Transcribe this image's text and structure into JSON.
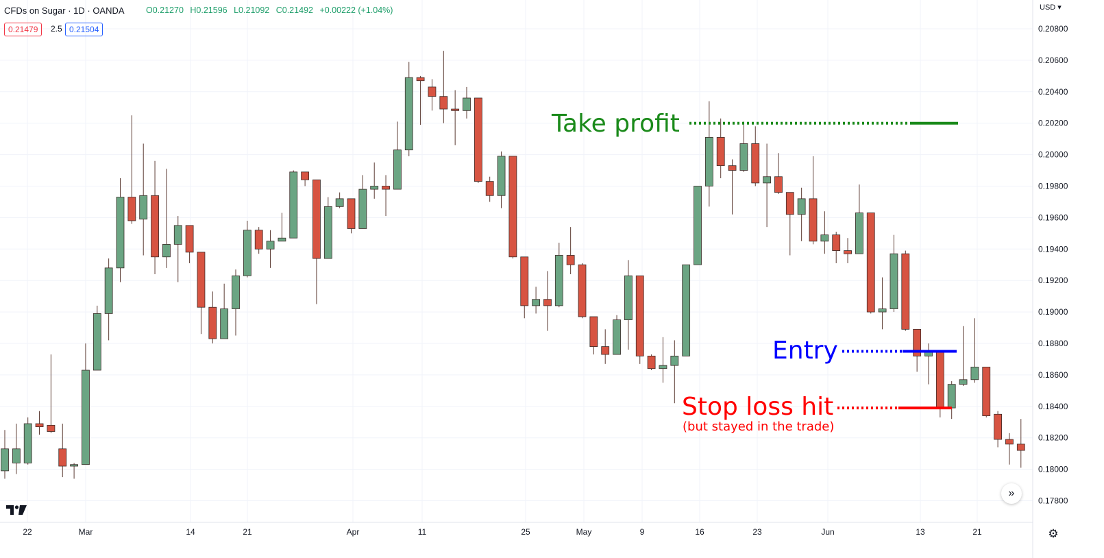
{
  "header": {
    "title": "CFDs on Sugar · 1D · OANDA",
    "open": "O0.21270",
    "high": "H0.21596",
    "low": "L0.21092",
    "close": "C0.21492",
    "change": "+0.00222 (+1.04%)",
    "value_color": "#1e9e6a"
  },
  "quote": {
    "bid": "0.21479",
    "spread": "2.5",
    "ask": "0.21504",
    "bid_color": "#f23645",
    "ask_color": "#2962ff"
  },
  "price_axis": {
    "currency": "USD",
    "labels": [
      "0.20800",
      "0.20600",
      "0.20400",
      "0.20200",
      "0.20000",
      "0.19800",
      "0.19600",
      "0.19400",
      "0.19200",
      "0.19000",
      "0.18800",
      "0.18600",
      "0.18400",
      "0.18200",
      "0.18000",
      "0.17800"
    ]
  },
  "time_axis": {
    "labels": [
      "22",
      "Mar",
      "14",
      "21",
      "Apr",
      "11",
      "25",
      "May",
      "9",
      "16",
      "23",
      "Jun",
      "13",
      "21"
    ]
  },
  "annotations": {
    "take_profit": "Take profit",
    "entry": "Entry",
    "stop_loss": "Stop loss hit",
    "stop_loss_note": "(but stayed in the trade)",
    "take_profit_color": "#1a8a1a",
    "entry_color": "#0000ff",
    "stop_loss_color": "#ff0000"
  },
  "controls": {
    "scroll_icon": "double-chevron-right-icon",
    "settings_icon": "gear-icon",
    "logo": "tradingview-logo"
  },
  "colors": {
    "up": "#6ba583",
    "down": "#d75442",
    "grid": "#f0f3fa"
  },
  "chart_data": {
    "type": "candlestick",
    "price_range": [
      0.177,
      0.209
    ],
    "levels": {
      "take_profit": 0.202,
      "entry": 0.1875,
      "stop_loss": 0.1839
    },
    "candles": [
      {
        "o": 0.1799,
        "h": 0.1825,
        "l": 0.1794,
        "c": 0.1813
      },
      {
        "o": 0.1804,
        "h": 0.1829,
        "l": 0.1797,
        "c": 0.1813
      },
      {
        "o": 0.1804,
        "h": 0.1833,
        "l": 0.1803,
        "c": 0.1829
      },
      {
        "o": 0.1829,
        "h": 0.1837,
        "l": 0.1822,
        "c": 0.1827
      },
      {
        "o": 0.1828,
        "h": 0.1873,
        "l": 0.1823,
        "c": 0.1824
      },
      {
        "o": 0.1813,
        "h": 0.1829,
        "l": 0.1795,
        "c": 0.1802
      },
      {
        "o": 0.1802,
        "h": 0.1804,
        "l": 0.1794,
        "c": 0.1803
      },
      {
        "o": 0.1803,
        "h": 0.188,
        "l": 0.1803,
        "c": 0.1863
      },
      {
        "o": 0.1863,
        "h": 0.1904,
        "l": 0.1863,
        "c": 0.1899
      },
      {
        "o": 0.1899,
        "h": 0.1934,
        "l": 0.1882,
        "c": 0.1928
      },
      {
        "o": 0.1928,
        "h": 0.1985,
        "l": 0.1919,
        "c": 0.1973
      },
      {
        "o": 0.1973,
        "h": 0.2025,
        "l": 0.1956,
        "c": 0.1958
      },
      {
        "o": 0.1959,
        "h": 0.2007,
        "l": 0.1936,
        "c": 0.1974
      },
      {
        "o": 0.1974,
        "h": 0.1996,
        "l": 0.1924,
        "c": 0.1935
      },
      {
        "o": 0.1935,
        "h": 0.1991,
        "l": 0.1928,
        "c": 0.1943
      },
      {
        "o": 0.1943,
        "h": 0.1961,
        "l": 0.1919,
        "c": 0.1955
      },
      {
        "o": 0.1955,
        "h": 0.1955,
        "l": 0.1931,
        "c": 0.1938
      },
      {
        "o": 0.1938,
        "h": 0.1938,
        "l": 0.1886,
        "c": 0.1903
      },
      {
        "o": 0.1903,
        "h": 0.1913,
        "l": 0.188,
        "c": 0.1883
      },
      {
        "o": 0.1883,
        "h": 0.1918,
        "l": 0.1883,
        "c": 0.1902
      },
      {
        "o": 0.1902,
        "h": 0.1927,
        "l": 0.1885,
        "c": 0.1923
      },
      {
        "o": 0.1923,
        "h": 0.1958,
        "l": 0.1922,
        "c": 0.1952
      },
      {
        "o": 0.1952,
        "h": 0.1954,
        "l": 0.1937,
        "c": 0.194
      },
      {
        "o": 0.194,
        "h": 0.1952,
        "l": 0.1928,
        "c": 0.1945
      },
      {
        "o": 0.1945,
        "h": 0.1963,
        "l": 0.1945,
        "c": 0.1947
      },
      {
        "o": 0.1947,
        "h": 0.199,
        "l": 0.1947,
        "c": 0.1989
      },
      {
        "o": 0.1989,
        "h": 0.1989,
        "l": 0.198,
        "c": 0.1984
      },
      {
        "o": 0.1984,
        "h": 0.1984,
        "l": 0.1905,
        "c": 0.1934
      },
      {
        "o": 0.1934,
        "h": 0.1973,
        "l": 0.1934,
        "c": 0.1967
      },
      {
        "o": 0.1967,
        "h": 0.1976,
        "l": 0.1966,
        "c": 0.1972
      },
      {
        "o": 0.1972,
        "h": 0.1972,
        "l": 0.195,
        "c": 0.1953
      },
      {
        "o": 0.1953,
        "h": 0.1987,
        "l": 0.1953,
        "c": 0.1978
      },
      {
        "o": 0.1978,
        "h": 0.1995,
        "l": 0.1972,
        "c": 0.198
      },
      {
        "o": 0.198,
        "h": 0.1987,
        "l": 0.1961,
        "c": 0.1978
      },
      {
        "o": 0.1978,
        "h": 0.2021,
        "l": 0.1978,
        "c": 0.2003
      },
      {
        "o": 0.2003,
        "h": 0.2059,
        "l": 0.1999,
        "c": 0.2049
      },
      {
        "o": 0.2049,
        "h": 0.205,
        "l": 0.2019,
        "c": 0.2047
      },
      {
        "o": 0.2043,
        "h": 0.2048,
        "l": 0.2028,
        "c": 0.2037
      },
      {
        "o": 0.2037,
        "h": 0.2066,
        "l": 0.202,
        "c": 0.2029
      },
      {
        "o": 0.2029,
        "h": 0.2041,
        "l": 0.2006,
        "c": 0.2028
      },
      {
        "o": 0.2028,
        "h": 0.2043,
        "l": 0.2023,
        "c": 0.2036
      },
      {
        "o": 0.2036,
        "h": 0.2036,
        "l": 0.1982,
        "c": 0.1983
      },
      {
        "o": 0.1983,
        "h": 0.1986,
        "l": 0.197,
        "c": 0.1974
      },
      {
        "o": 0.1974,
        "h": 0.2002,
        "l": 0.1966,
        "c": 0.1999
      },
      {
        "o": 0.1999,
        "h": 0.1999,
        "l": 0.1934,
        "c": 0.1935
      },
      {
        "o": 0.1935,
        "h": 0.1935,
        "l": 0.1896,
        "c": 0.1904
      },
      {
        "o": 0.1904,
        "h": 0.1916,
        "l": 0.1899,
        "c": 0.1908
      },
      {
        "o": 0.1908,
        "h": 0.1926,
        "l": 0.1888,
        "c": 0.1904
      },
      {
        "o": 0.1904,
        "h": 0.1944,
        "l": 0.1903,
        "c": 0.1936
      },
      {
        "o": 0.1936,
        "h": 0.1954,
        "l": 0.1924,
        "c": 0.193
      },
      {
        "o": 0.193,
        "h": 0.1931,
        "l": 0.1896,
        "c": 0.1897
      },
      {
        "o": 0.1897,
        "h": 0.1897,
        "l": 0.1873,
        "c": 0.1878
      },
      {
        "o": 0.1878,
        "h": 0.1889,
        "l": 0.1867,
        "c": 0.1873
      },
      {
        "o": 0.1873,
        "h": 0.1898,
        "l": 0.1873,
        "c": 0.1895
      },
      {
        "o": 0.1895,
        "h": 0.1933,
        "l": 0.1876,
        "c": 0.1923
      },
      {
        "o": 0.1923,
        "h": 0.1923,
        "l": 0.1867,
        "c": 0.1872
      },
      {
        "o": 0.1872,
        "h": 0.1873,
        "l": 0.1863,
        "c": 0.1864
      },
      {
        "o": 0.1864,
        "h": 0.1884,
        "l": 0.1855,
        "c": 0.1866
      },
      {
        "o": 0.1866,
        "h": 0.1882,
        "l": 0.1842,
        "c": 0.1872
      },
      {
        "o": 0.1872,
        "h": 0.193,
        "l": 0.1872,
        "c": 0.193
      },
      {
        "o": 0.193,
        "h": 0.198,
        "l": 0.193,
        "c": 0.198
      },
      {
        "o": 0.198,
        "h": 0.2034,
        "l": 0.1967,
        "c": 0.2011
      },
      {
        "o": 0.2011,
        "h": 0.2023,
        "l": 0.1985,
        "c": 0.1993
      },
      {
        "o": 0.1993,
        "h": 0.1997,
        "l": 0.1962,
        "c": 0.199
      },
      {
        "o": 0.199,
        "h": 0.2021,
        "l": 0.1989,
        "c": 0.2007
      },
      {
        "o": 0.2007,
        "h": 0.2018,
        "l": 0.198,
        "c": 0.1982
      },
      {
        "o": 0.1982,
        "h": 0.2007,
        "l": 0.1954,
        "c": 0.1986
      },
      {
        "o": 0.1986,
        "h": 0.2001,
        "l": 0.1975,
        "c": 0.1976
      },
      {
        "o": 0.1976,
        "h": 0.1976,
        "l": 0.1936,
        "c": 0.1962
      },
      {
        "o": 0.1962,
        "h": 0.1979,
        "l": 0.1945,
        "c": 0.1972
      },
      {
        "o": 0.1972,
        "h": 0.1999,
        "l": 0.1943,
        "c": 0.1945
      },
      {
        "o": 0.1945,
        "h": 0.1964,
        "l": 0.1937,
        "c": 0.1949
      },
      {
        "o": 0.1949,
        "h": 0.1951,
        "l": 0.1931,
        "c": 0.1939
      },
      {
        "o": 0.1939,
        "h": 0.1947,
        "l": 0.1931,
        "c": 0.1937
      },
      {
        "o": 0.1937,
        "h": 0.1981,
        "l": 0.1937,
        "c": 0.1963
      },
      {
        "o": 0.1963,
        "h": 0.1963,
        "l": 0.1899,
        "c": 0.19
      },
      {
        "o": 0.19,
        "h": 0.1922,
        "l": 0.1889,
        "c": 0.1902
      },
      {
        "o": 0.1902,
        "h": 0.1949,
        "l": 0.19,
        "c": 0.1937
      },
      {
        "o": 0.1937,
        "h": 0.1939,
        "l": 0.1888,
        "c": 0.1889
      },
      {
        "o": 0.1889,
        "h": 0.1889,
        "l": 0.1862,
        "c": 0.1872
      },
      {
        "o": 0.1872,
        "h": 0.188,
        "l": 0.1854,
        "c": 0.1875
      },
      {
        "o": 0.1875,
        "h": 0.1875,
        "l": 0.1833,
        "c": 0.1839
      },
      {
        "o": 0.1839,
        "h": 0.1856,
        "l": 0.1832,
        "c": 0.1854
      },
      {
        "o": 0.1854,
        "h": 0.1891,
        "l": 0.1853,
        "c": 0.1857
      },
      {
        "o": 0.1857,
        "h": 0.1896,
        "l": 0.1855,
        "c": 0.1865
      },
      {
        "o": 0.1865,
        "h": 0.1865,
        "l": 0.1833,
        "c": 0.1834
      },
      {
        "o": 0.1835,
        "h": 0.1837,
        "l": 0.1814,
        "c": 0.1819
      },
      {
        "o": 0.1819,
        "h": 0.1823,
        "l": 0.1803,
        "c": 0.1816
      },
      {
        "o": 0.1816,
        "h": 0.1832,
        "l": 0.1801,
        "c": 0.1812
      }
    ]
  }
}
